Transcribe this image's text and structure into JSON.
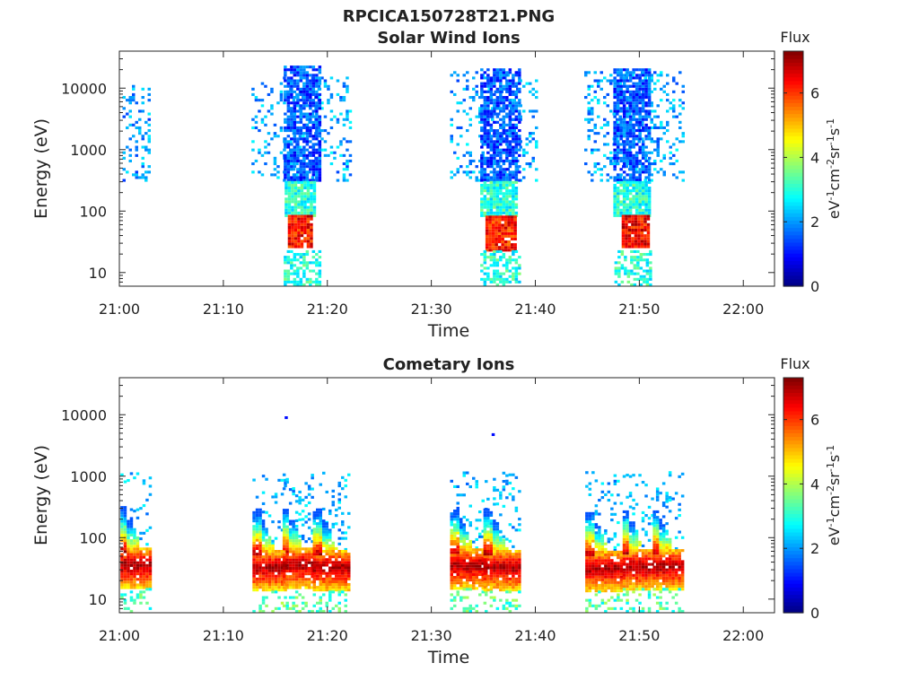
{
  "figure_title": "RPCICA150728T21.PNG",
  "colorbar": {
    "title": "Flux",
    "unit_label": "eV-1cm-2sr-1s-1",
    "range": [
      0,
      7.3
    ],
    "ticks": [
      "0",
      "2",
      "4",
      "6"
    ],
    "tick_values": [
      0,
      2,
      4,
      6
    ],
    "colormap": "jet"
  },
  "chart_data": [
    {
      "type": "heatmap",
      "title": "Solar Wind Ions",
      "xlabel": "Time",
      "ylabel": "Energy (eV)",
      "x_unit": "minutes after 21:00",
      "xlim": [
        0,
        63
      ],
      "x_ticks": [
        "21:00",
        "21:10",
        "21:20",
        "21:30",
        "21:40",
        "21:50",
        "22:00"
      ],
      "x_tick_values": [
        0,
        10,
        20,
        30,
        40,
        50,
        60
      ],
      "y_scale": "log",
      "ylim": [
        6,
        40000
      ],
      "y_ticks": [
        "10",
        "100",
        "1000",
        "10000"
      ],
      "y_tick_values": [
        10,
        100,
        1000,
        10000
      ],
      "clusters": [
        {
          "t_start": 0.3,
          "t_end": 3.0,
          "e_min": 300,
          "e_max": 11000,
          "flux": 2.0,
          "density": 0.28
        },
        {
          "t_start": 12.7,
          "t_end": 22.2,
          "e_min": 300,
          "e_max": 15000,
          "flux": 2.1,
          "density": 0.22
        },
        {
          "t_start": 15.8,
          "t_end": 19.2,
          "e_min": 300,
          "e_max": 22000,
          "flux": 1.5,
          "density": 0.75
        },
        {
          "t_start": 15.9,
          "t_end": 18.9,
          "e_min": 80,
          "e_max": 300,
          "flux": 3.0,
          "density": 0.9
        },
        {
          "t_start": 16.2,
          "t_end": 18.6,
          "e_min": 25,
          "e_max": 80,
          "flux": 6.3,
          "density": 0.95
        },
        {
          "t_start": 15.8,
          "t_end": 19.2,
          "e_min": 6,
          "e_max": 22,
          "flux": 3.0,
          "density": 0.6
        },
        {
          "t_start": 31.8,
          "t_end": 40.2,
          "e_min": 300,
          "e_max": 18000,
          "flux": 2.1,
          "density": 0.22
        },
        {
          "t_start": 34.7,
          "t_end": 38.5,
          "e_min": 300,
          "e_max": 20000,
          "flux": 1.5,
          "density": 0.75
        },
        {
          "t_start": 34.7,
          "t_end": 38.3,
          "e_min": 80,
          "e_max": 300,
          "flux": 3.0,
          "density": 0.9
        },
        {
          "t_start": 35.2,
          "t_end": 38.2,
          "e_min": 22,
          "e_max": 80,
          "flux": 6.2,
          "density": 0.95
        },
        {
          "t_start": 34.7,
          "t_end": 38.4,
          "e_min": 6,
          "e_max": 22,
          "flux": 3.0,
          "density": 0.55
        },
        {
          "t_start": 44.7,
          "t_end": 54.2,
          "e_min": 300,
          "e_max": 18000,
          "flux": 2.1,
          "density": 0.22
        },
        {
          "t_start": 47.5,
          "t_end": 51.0,
          "e_min": 300,
          "e_max": 20000,
          "flux": 1.5,
          "density": 0.75
        },
        {
          "t_start": 47.5,
          "t_end": 51.0,
          "e_min": 80,
          "e_max": 300,
          "flux": 3.0,
          "density": 0.9
        },
        {
          "t_start": 48.3,
          "t_end": 51.0,
          "e_min": 25,
          "e_max": 80,
          "flux": 6.4,
          "density": 0.95
        },
        {
          "t_start": 47.6,
          "t_end": 51.2,
          "e_min": 6,
          "e_max": 22,
          "flux": 3.0,
          "density": 0.55
        }
      ]
    },
    {
      "type": "heatmap",
      "title": "Cometary Ions",
      "xlabel": "Time",
      "ylabel": "Energy (eV)",
      "x_unit": "minutes after 21:00",
      "xlim": [
        0,
        63
      ],
      "x_ticks": [
        "21:00",
        "21:10",
        "21:20",
        "21:30",
        "21:40",
        "21:50",
        "22:00"
      ],
      "x_tick_values": [
        0,
        10,
        20,
        30,
        40,
        50,
        60
      ],
      "y_scale": "log",
      "ylim": [
        6,
        40000
      ],
      "y_ticks": [
        "10",
        "100",
        "1000",
        "10000"
      ],
      "y_tick_values": [
        10,
        100,
        1000,
        10000
      ],
      "bursts": [
        {
          "t": 0.1,
          "t_end": 3.0,
          "e_peak": 35
        },
        {
          "t": 12.8,
          "t_end": 16.0,
          "e_peak": 32
        },
        {
          "t": 15.7,
          "t_end": 18.5,
          "e_peak": 35
        },
        {
          "t": 18.6,
          "t_end": 22.2,
          "e_peak": 32
        },
        {
          "t": 31.8,
          "t_end": 35.2,
          "e_peak": 34
        },
        {
          "t": 35.0,
          "t_end": 38.5,
          "e_peak": 32
        },
        {
          "t": 44.8,
          "t_end": 48.2,
          "e_peak": 31
        },
        {
          "t": 48.4,
          "t_end": 51.3,
          "e_peak": 33
        },
        {
          "t": 51.3,
          "t_end": 54.2,
          "e_peak": 33
        }
      ],
      "isolated_points": [
        {
          "t": 15.9,
          "e": 8500,
          "flux": 1.0
        },
        {
          "t": 35.8,
          "e": 4500,
          "flux": 1.0
        }
      ]
    }
  ]
}
